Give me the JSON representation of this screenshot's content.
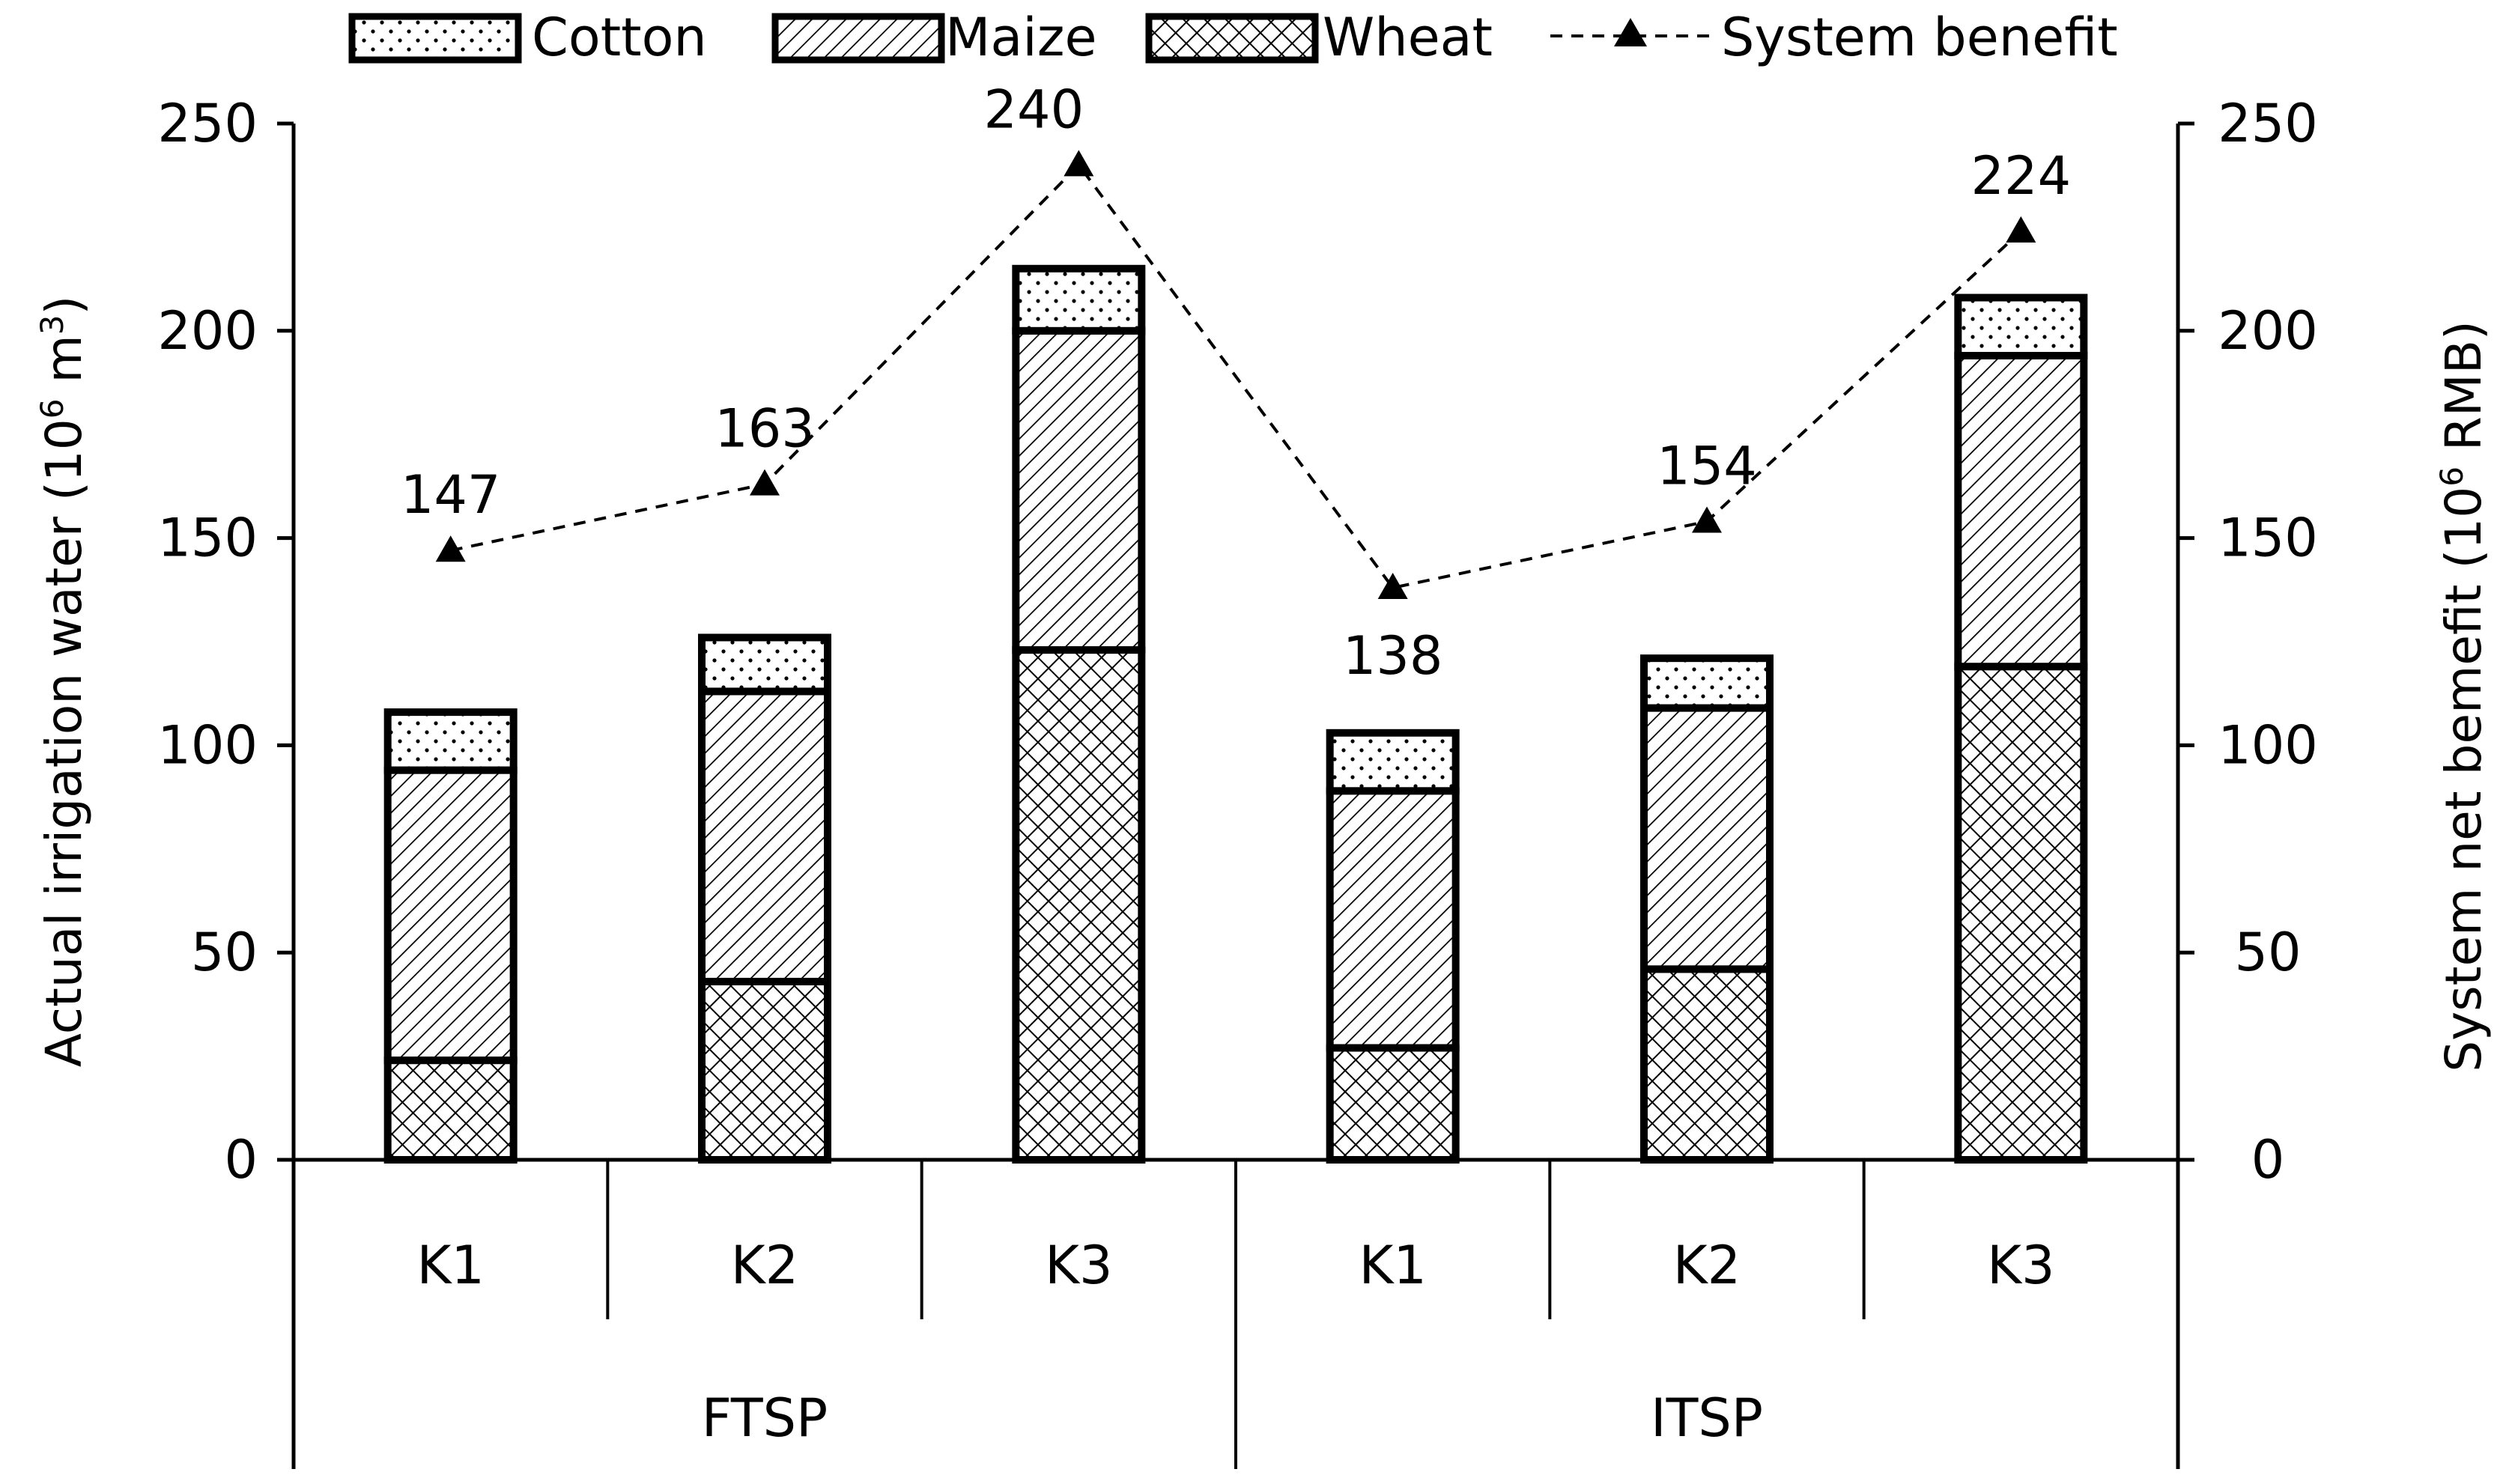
{
  "chart_data": {
    "type": "bar",
    "stacked": true,
    "groups": [
      {
        "label": "FTSP",
        "categories": [
          "K1",
          "K2",
          "K3"
        ]
      },
      {
        "label": "ITSP",
        "categories": [
          "K1",
          "K2",
          "K3"
        ]
      }
    ],
    "series": [
      {
        "name": "Wheat",
        "axis": "left",
        "pattern": "crosshatch",
        "values": [
          24,
          43,
          123,
          27,
          46,
          119
        ]
      },
      {
        "name": "Maize",
        "axis": "left",
        "pattern": "diagonal",
        "values": [
          70,
          70,
          77,
          62,
          63,
          75
        ]
      },
      {
        "name": "Cotton",
        "axis": "left",
        "pattern": "dotted",
        "values": [
          14,
          13,
          15,
          14,
          12,
          14
        ]
      }
    ],
    "line_series": {
      "name": "System benefit",
      "axis": "right",
      "style": "dashed",
      "marker": "triangle",
      "values": [
        147,
        163,
        240,
        138,
        154,
        224
      ],
      "labels": [
        "147",
        "163",
        "240",
        "138",
        "154",
        "224"
      ]
    },
    "legend_order": [
      "Cotton",
      "Maize",
      "Wheat",
      "System benefit"
    ],
    "legend_position": "top",
    "y_left": {
      "label_main": "Actual irrigation  water  (10",
      "label_sup": "6",
      "label_tail": " m",
      "label_sup2": "3",
      "label_close": ")",
      "range": [
        0,
        250
      ],
      "ticks": [
        "0",
        "50",
        "100",
        "150",
        "200",
        "250"
      ]
    },
    "y_right": {
      "label_main": "System net bemefit  (10",
      "label_sup": "6",
      "label_tail": " RMB)",
      "range": [
        0,
        250
      ],
      "ticks": [
        "0",
        "50",
        "100",
        "150",
        "200",
        "250"
      ]
    },
    "grid": false,
    "colors": {
      "ink": "#000000",
      "background": "#ffffff"
    }
  }
}
